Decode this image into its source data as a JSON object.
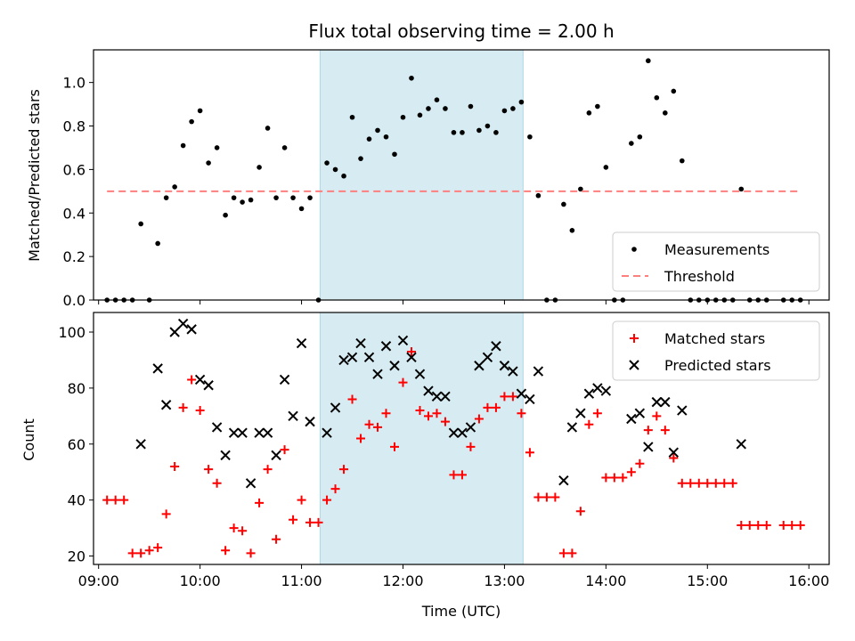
{
  "chart_data": [
    {
      "type": "scatter",
      "title": "Flux total observing time = 2.00 h",
      "ylabel": "Matched/Predicted stars",
      "xlabel": "",
      "xlim": [
        "08:57",
        "16:12"
      ],
      "ylim": [
        0,
        1.15
      ],
      "x_ticks": [
        "09:00",
        "10:00",
        "11:00",
        "12:00",
        "13:00",
        "14:00",
        "15:00",
        "16:00"
      ],
      "y_ticks": [
        "0.0",
        "0.2",
        "0.4",
        "0.6",
        "0.8",
        "1.0"
      ],
      "shaded_interval": [
        "11:11",
        "13:11"
      ],
      "shade_color": "#add8e6",
      "legend_position": "lower right",
      "series": [
        {
          "name": "Measurements",
          "kind": "scatter",
          "marker": "dot",
          "color": "#000000",
          "points": [
            [
              "09:05",
              0.0
            ],
            [
              "09:10",
              0.0
            ],
            [
              "09:15",
              0.0
            ],
            [
              "09:20",
              0.0
            ],
            [
              "09:25",
              0.35
            ],
            [
              "09:30",
              0.0
            ],
            [
              "09:35",
              0.26
            ],
            [
              "09:40",
              0.47
            ],
            [
              "09:45",
              0.52
            ],
            [
              "09:50",
              0.71
            ],
            [
              "09:55",
              0.82
            ],
            [
              "10:00",
              0.87
            ],
            [
              "10:05",
              0.63
            ],
            [
              "10:10",
              0.7
            ],
            [
              "10:15",
              0.39
            ],
            [
              "10:20",
              0.47
            ],
            [
              "10:25",
              0.45
            ],
            [
              "10:30",
              0.46
            ],
            [
              "10:35",
              0.61
            ],
            [
              "10:40",
              0.79
            ],
            [
              "10:45",
              0.47
            ],
            [
              "10:50",
              0.7
            ],
            [
              "10:55",
              0.47
            ],
            [
              "11:00",
              0.42
            ],
            [
              "11:05",
              0.47
            ],
            [
              "11:10",
              0.0
            ],
            [
              "11:15",
              0.63
            ],
            [
              "11:20",
              0.6
            ],
            [
              "11:25",
              0.57
            ],
            [
              "11:30",
              0.84
            ],
            [
              "11:35",
              0.65
            ],
            [
              "11:40",
              0.74
            ],
            [
              "11:45",
              0.78
            ],
            [
              "11:50",
              0.75
            ],
            [
              "11:55",
              0.67
            ],
            [
              "12:00",
              0.84
            ],
            [
              "12:05",
              1.02
            ],
            [
              "12:10",
              0.85
            ],
            [
              "12:15",
              0.88
            ],
            [
              "12:20",
              0.92
            ],
            [
              "12:25",
              0.88
            ],
            [
              "12:30",
              0.77
            ],
            [
              "12:35",
              0.77
            ],
            [
              "12:40",
              0.89
            ],
            [
              "12:45",
              0.78
            ],
            [
              "12:50",
              0.8
            ],
            [
              "12:55",
              0.77
            ],
            [
              "13:00",
              0.87
            ],
            [
              "13:05",
              0.88
            ],
            [
              "13:10",
              0.91
            ],
            [
              "13:15",
              0.75
            ],
            [
              "13:20",
              0.48
            ],
            [
              "13:25",
              0.0
            ],
            [
              "13:30",
              0.0
            ],
            [
              "13:35",
              0.44
            ],
            [
              "13:40",
              0.32
            ],
            [
              "13:45",
              0.51
            ],
            [
              "13:50",
              0.86
            ],
            [
              "13:55",
              0.89
            ],
            [
              "14:00",
              0.61
            ],
            [
              "14:05",
              0.0
            ],
            [
              "14:10",
              0.0
            ],
            [
              "14:15",
              0.72
            ],
            [
              "14:20",
              0.75
            ],
            [
              "14:25",
              1.1
            ],
            [
              "14:30",
              0.93
            ],
            [
              "14:35",
              0.86
            ],
            [
              "14:40",
              0.96
            ],
            [
              "14:45",
              0.64
            ],
            [
              "14:50",
              0.0
            ],
            [
              "14:55",
              0.0
            ],
            [
              "15:00",
              0.0
            ],
            [
              "15:05",
              0.0
            ],
            [
              "15:10",
              0.0
            ],
            [
              "15:15",
              0.0
            ],
            [
              "15:20",
              0.51
            ],
            [
              "15:25",
              0.0
            ],
            [
              "15:30",
              0.0
            ],
            [
              "15:35",
              0.0
            ],
            [
              "15:45",
              0.0
            ],
            [
              "15:50",
              0.0
            ],
            [
              "15:55",
              0.0
            ]
          ]
        },
        {
          "name": "Threshold",
          "kind": "dashed-line",
          "color": "#ff7f7f",
          "points": [
            [
              "09:05",
              0.5
            ],
            [
              "15:55",
              0.5
            ]
          ]
        }
      ]
    },
    {
      "type": "scatter",
      "title": "",
      "ylabel": "Count",
      "xlabel": "Time (UTC)",
      "xlim": [
        "08:57",
        "16:12"
      ],
      "ylim": [
        17,
        107
      ],
      "x_ticks": [
        "09:00",
        "10:00",
        "11:00",
        "12:00",
        "13:00",
        "14:00",
        "15:00",
        "16:00"
      ],
      "y_ticks": [
        "20",
        "40",
        "60",
        "80",
        "100"
      ],
      "shaded_interval": [
        "11:11",
        "13:11"
      ],
      "shade_color": "#add8e6",
      "legend_position": "upper right",
      "series": [
        {
          "name": "Matched stars",
          "kind": "scatter",
          "marker": "plus",
          "color": "#ff0000",
          "points": [
            [
              "09:05",
              40
            ],
            [
              "09:10",
              40
            ],
            [
              "09:15",
              40
            ],
            [
              "09:20",
              21
            ],
            [
              "09:25",
              21
            ],
            [
              "09:30",
              22
            ],
            [
              "09:35",
              23
            ],
            [
              "09:40",
              35
            ],
            [
              "09:45",
              52
            ],
            [
              "09:50",
              73
            ],
            [
              "09:55",
              83
            ],
            [
              "10:00",
              72
            ],
            [
              "10:05",
              51
            ],
            [
              "10:10",
              46
            ],
            [
              "10:15",
              22
            ],
            [
              "10:20",
              30
            ],
            [
              "10:25",
              29
            ],
            [
              "10:30",
              21
            ],
            [
              "10:35",
              39
            ],
            [
              "10:40",
              51
            ],
            [
              "10:45",
              26
            ],
            [
              "10:50",
              58
            ],
            [
              "10:55",
              33
            ],
            [
              "11:00",
              40
            ],
            [
              "11:05",
              32
            ],
            [
              "11:10",
              32
            ],
            [
              "11:15",
              40
            ],
            [
              "11:20",
              44
            ],
            [
              "11:25",
              51
            ],
            [
              "11:30",
              76
            ],
            [
              "11:35",
              62
            ],
            [
              "11:40",
              67
            ],
            [
              "11:45",
              66
            ],
            [
              "11:50",
              71
            ],
            [
              "11:55",
              59
            ],
            [
              "12:00",
              82
            ],
            [
              "12:05",
              93
            ],
            [
              "12:10",
              72
            ],
            [
              "12:15",
              70
            ],
            [
              "12:20",
              71
            ],
            [
              "12:25",
              68
            ],
            [
              "12:30",
              49
            ],
            [
              "12:35",
              49
            ],
            [
              "12:40",
              59
            ],
            [
              "12:45",
              69
            ],
            [
              "12:50",
              73
            ],
            [
              "12:55",
              73
            ],
            [
              "13:00",
              77
            ],
            [
              "13:05",
              77
            ],
            [
              "13:10",
              71
            ],
            [
              "13:15",
              57
            ],
            [
              "13:20",
              41
            ],
            [
              "13:25",
              41
            ],
            [
              "13:30",
              41
            ],
            [
              "13:35",
              21
            ],
            [
              "13:40",
              21
            ],
            [
              "13:45",
              36
            ],
            [
              "13:50",
              67
            ],
            [
              "13:55",
              71
            ],
            [
              "14:00",
              48
            ],
            [
              "14:05",
              48
            ],
            [
              "14:10",
              48
            ],
            [
              "14:15",
              50
            ],
            [
              "14:20",
              53
            ],
            [
              "14:25",
              65
            ],
            [
              "14:30",
              70
            ],
            [
              "14:35",
              65
            ],
            [
              "14:40",
              55
            ],
            [
              "14:45",
              46
            ],
            [
              "14:50",
              46
            ],
            [
              "14:55",
              46
            ],
            [
              "15:00",
              46
            ],
            [
              "15:05",
              46
            ],
            [
              "15:10",
              46
            ],
            [
              "15:15",
              46
            ],
            [
              "15:20",
              31
            ],
            [
              "15:25",
              31
            ],
            [
              "15:30",
              31
            ],
            [
              "15:35",
              31
            ],
            [
              "15:45",
              31
            ],
            [
              "15:50",
              31
            ],
            [
              "15:55",
              31
            ]
          ]
        },
        {
          "name": "Predicted stars",
          "kind": "scatter",
          "marker": "x",
          "color": "#000000",
          "points": [
            [
              "09:25",
              60
            ],
            [
              "09:35",
              87
            ],
            [
              "09:40",
              74
            ],
            [
              "09:45",
              100
            ],
            [
              "09:50",
              103
            ],
            [
              "09:55",
              101
            ],
            [
              "10:00",
              83
            ],
            [
              "10:05",
              81
            ],
            [
              "10:10",
              66
            ],
            [
              "10:15",
              56
            ],
            [
              "10:20",
              64
            ],
            [
              "10:25",
              64
            ],
            [
              "10:30",
              46
            ],
            [
              "10:35",
              64
            ],
            [
              "10:40",
              64
            ],
            [
              "10:45",
              56
            ],
            [
              "10:50",
              83
            ],
            [
              "10:55",
              70
            ],
            [
              "11:00",
              96
            ],
            [
              "11:05",
              68
            ],
            [
              "11:15",
              64
            ],
            [
              "11:20",
              73
            ],
            [
              "11:25",
              90
            ],
            [
              "11:30",
              91
            ],
            [
              "11:35",
              96
            ],
            [
              "11:40",
              91
            ],
            [
              "11:45",
              85
            ],
            [
              "11:50",
              95
            ],
            [
              "11:55",
              88
            ],
            [
              "12:00",
              97
            ],
            [
              "12:05",
              91
            ],
            [
              "12:10",
              85
            ],
            [
              "12:15",
              79
            ],
            [
              "12:20",
              77
            ],
            [
              "12:25",
              77
            ],
            [
              "12:30",
              64
            ],
            [
              "12:35",
              64
            ],
            [
              "12:40",
              66
            ],
            [
              "12:45",
              88
            ],
            [
              "12:50",
              91
            ],
            [
              "12:55",
              95
            ],
            [
              "13:00",
              88
            ],
            [
              "13:05",
              86
            ],
            [
              "13:10",
              78
            ],
            [
              "13:15",
              76
            ],
            [
              "13:20",
              86
            ],
            [
              "13:35",
              47
            ],
            [
              "13:40",
              66
            ],
            [
              "13:45",
              71
            ],
            [
              "13:50",
              78
            ],
            [
              "13:55",
              80
            ],
            [
              "14:00",
              79
            ],
            [
              "14:15",
              69
            ],
            [
              "14:20",
              71
            ],
            [
              "14:25",
              59
            ],
            [
              "14:30",
              75
            ],
            [
              "14:35",
              75
            ],
            [
              "14:40",
              57
            ],
            [
              "14:45",
              72
            ],
            [
              "15:20",
              60
            ]
          ]
        }
      ]
    }
  ]
}
